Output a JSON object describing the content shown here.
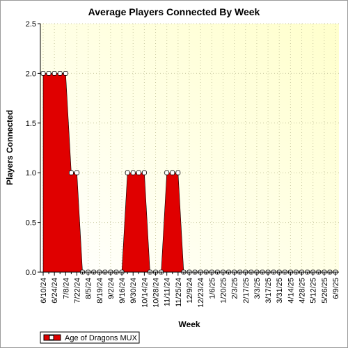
{
  "chart_data": {
    "type": "area",
    "title": "Average Players Connected By Week",
    "xlabel": "Week",
    "ylabel": "Players Connected",
    "ylim": [
      0,
      2.5
    ],
    "yticks": [
      "0.0",
      "0.5",
      "1.0",
      "1.5",
      "2.0",
      "2.5"
    ],
    "xtick_labels": [
      "6/10/24",
      "6/24/24",
      "7/8/24",
      "7/22/24",
      "8/5/24",
      "8/19/24",
      "9/2/24",
      "9/16/24",
      "9/30/24",
      "10/14/24",
      "10/28/24",
      "11/11/24",
      "11/25/24",
      "12/9/24",
      "12/23/24",
      "1/6/25",
      "1/20/25",
      "2/3/25",
      "2/17/25",
      "3/3/25",
      "3/17/25",
      "3/31/25",
      "4/14/25",
      "4/28/25",
      "5/12/25",
      "5/26/25",
      "6/9/25"
    ],
    "categories": [
      "6/10/24",
      "6/17/24",
      "6/24/24",
      "7/1/24",
      "7/8/24",
      "7/15/24",
      "7/22/24",
      "7/29/24",
      "8/5/24",
      "8/12/24",
      "8/19/24",
      "8/26/24",
      "9/2/24",
      "9/9/24",
      "9/16/24",
      "9/23/24",
      "9/30/24",
      "10/7/24",
      "10/14/24",
      "10/21/24",
      "10/28/24",
      "11/4/24",
      "11/11/24",
      "11/18/24",
      "11/25/24",
      "12/2/24",
      "12/9/24",
      "12/16/24",
      "12/23/24",
      "12/30/24",
      "1/6/25",
      "1/13/25",
      "1/20/25",
      "1/27/25",
      "2/3/25",
      "2/10/25",
      "2/17/25",
      "2/24/25",
      "3/3/25",
      "3/10/25",
      "3/17/25",
      "3/24/25",
      "3/31/25",
      "4/7/25",
      "4/14/25",
      "4/21/25",
      "4/28/25",
      "5/5/25",
      "5/12/25",
      "5/19/25",
      "5/26/25",
      "6/2/25",
      "6/9/25"
    ],
    "series": [
      {
        "name": "Age of Dragons MUX",
        "color": "#e00000",
        "values": [
          2,
          2,
          2,
          2,
          2,
          1,
          1,
          0,
          0,
          0,
          0,
          0,
          0,
          0,
          0,
          1,
          1,
          1,
          1,
          0,
          0,
          0,
          1,
          1,
          1,
          0,
          0,
          0,
          0,
          0,
          0,
          0,
          0,
          0,
          0,
          0,
          0,
          0,
          0,
          0,
          0,
          0,
          0,
          0,
          0,
          0,
          0,
          0,
          0,
          0,
          0,
          0,
          0
        ]
      }
    ],
    "grid": true,
    "legend_position": "bottom-left",
    "background_gradient": [
      "#ffffff",
      "#ffffcc"
    ]
  }
}
